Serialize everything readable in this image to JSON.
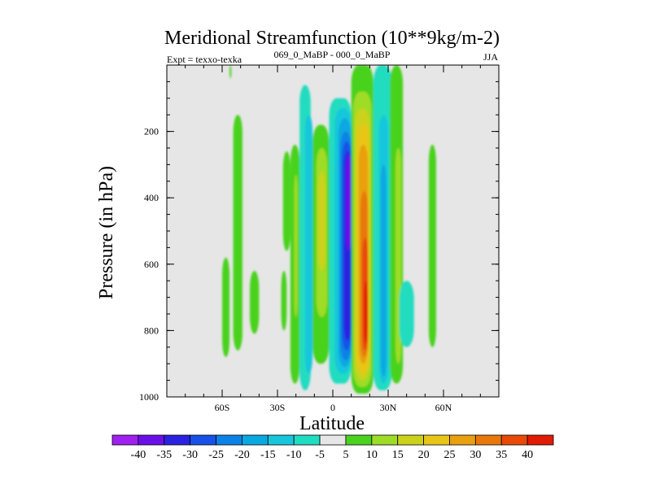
{
  "chart_data": {
    "type": "heatmap",
    "variant": "filled-contour",
    "title": "Meridional Streamfunction (10**9kg/m-2)",
    "left_label": "Expt = texxo-texka",
    "center_label": "069_0_MaBP - 000_0_MaBP",
    "right_label": "JJA",
    "xlabel": "Latitude",
    "ylabel": "Pressure (in hPa)",
    "xlim": [
      -90,
      90
    ],
    "ylim": [
      0,
      1000
    ],
    "y_inverted": true,
    "x_ticks": [
      {
        "value": -60,
        "label": "60S"
      },
      {
        "value": -30,
        "label": "30S"
      },
      {
        "value": 0,
        "label": "0"
      },
      {
        "value": 30,
        "label": "30N"
      },
      {
        "value": 60,
        "label": "60N"
      }
    ],
    "y_ticks": [
      {
        "value": 200,
        "label": "200"
      },
      {
        "value": 400,
        "label": "400"
      },
      {
        "value": 600,
        "label": "600"
      },
      {
        "value": 800,
        "label": "800"
      },
      {
        "value": 1000,
        "label": "1000"
      }
    ],
    "background_color": "#e6e6e6",
    "colorbar": {
      "levels": [
        "-40",
        "-35",
        "-30",
        "-25",
        "-20",
        "-15",
        "-10",
        "-5",
        "5",
        "10",
        "15",
        "20",
        "25",
        "30",
        "35",
        "40"
      ],
      "colors": [
        "#a020f0",
        "#6a0fe8",
        "#2a22e0",
        "#1652e8",
        "#0c82e6",
        "#0aa8e0",
        "#18c6dc",
        "#20dcc0",
        "#e6e6e6",
        "#4ad21e",
        "#9edc28",
        "#ccd21c",
        "#e8c618",
        "#e8a010",
        "#e8780c",
        "#e84a08",
        "#e01c04"
      ]
    },
    "bands": [
      {
        "lat": [
          -23,
          -18
        ],
        "p": [
          240,
          960
        ],
        "level": 1
      },
      {
        "lat": [
          -21,
          -19
        ],
        "p": [
          330,
          760
        ],
        "level": 2
      },
      {
        "lat": [
          -18,
          -12
        ],
        "p": [
          60,
          980
        ],
        "level": -1
      },
      {
        "lat": [
          -15,
          -11
        ],
        "p": [
          150,
          930
        ],
        "level": -2
      },
      {
        "lat": [
          -11,
          -2
        ],
        "p": [
          180,
          900
        ],
        "level": 1
      },
      {
        "lat": [
          -9,
          -3
        ],
        "p": [
          250,
          760
        ],
        "level": 2
      },
      {
        "lat": [
          -8,
          -4
        ],
        "p": [
          320,
          620
        ],
        "level": 3
      },
      {
        "lat": [
          -2,
          10
        ],
        "p": [
          100,
          960
        ],
        "level": -1
      },
      {
        "lat": [
          1,
          10
        ],
        "p": [
          130,
          930
        ],
        "level": -2
      },
      {
        "lat": [
          3,
          10
        ],
        "p": [
          160,
          910
        ],
        "level": -3
      },
      {
        "lat": [
          4,
          10
        ],
        "p": [
          200,
          890
        ],
        "level": -4
      },
      {
        "lat": [
          5,
          10
        ],
        "p": [
          230,
          860
        ],
        "level": -5
      },
      {
        "lat": [
          6,
          10
        ],
        "p": [
          260,
          830
        ],
        "level": -6
      },
      {
        "lat": [
          7,
          10
        ],
        "p": [
          270,
          560
        ],
        "level": -7
      },
      {
        "lat": [
          10,
          22
        ],
        "p": [
          0,
          990
        ],
        "level": 1
      },
      {
        "lat": [
          11,
          21
        ],
        "p": [
          80,
          970
        ],
        "level": 2
      },
      {
        "lat": [
          12,
          20
        ],
        "p": [
          130,
          950
        ],
        "level": 3
      },
      {
        "lat": [
          13,
          20
        ],
        "p": [
          180,
          930
        ],
        "level": 4
      },
      {
        "lat": [
          14,
          19
        ],
        "p": [
          240,
          900
        ],
        "level": 5
      },
      {
        "lat": [
          15,
          19
        ],
        "p": [
          380,
          880
        ],
        "level": 6
      },
      {
        "lat": [
          16,
          19
        ],
        "p": [
          520,
          860
        ],
        "level": 7
      },
      {
        "lat": [
          17,
          19
        ],
        "p": [
          650,
          840
        ],
        "level": 8
      },
      {
        "lat": [
          22,
          32
        ],
        "p": [
          0,
          980
        ],
        "level": -1
      },
      {
        "lat": [
          25,
          30
        ],
        "p": [
          150,
          960
        ],
        "level": -2
      },
      {
        "lat": [
          26,
          29
        ],
        "p": [
          300,
          940
        ],
        "level": -3
      },
      {
        "lat": [
          31,
          38
        ],
        "p": [
          0,
          960
        ],
        "level": 1
      },
      {
        "lat": [
          34,
          37
        ],
        "p": [
          250,
          900
        ],
        "level": 2
      },
      {
        "lat": [
          36,
          44
        ],
        "p": [
          650,
          850
        ],
        "level": -1
      },
      {
        "lat": [
          52,
          56
        ],
        "p": [
          240,
          850
        ],
        "level": 1
      },
      {
        "lat": [
          -27,
          -23
        ],
        "p": [
          260,
          560
        ],
        "level": 1
      },
      {
        "lat": [
          -28,
          -25
        ],
        "p": [
          620,
          800
        ],
        "level": 1
      },
      {
        "lat": [
          -45,
          -40
        ],
        "p": [
          620,
          810
        ],
        "level": 1
      },
      {
        "lat": [
          -54,
          -49
        ],
        "p": [
          150,
          860
        ],
        "level": 1
      },
      {
        "lat": [
          -60,
          -56
        ],
        "p": [
          580,
          880
        ],
        "level": 1
      },
      {
        "lat": [
          -56,
          -55
        ],
        "p": [
          0,
          40
        ],
        "level": 1
      }
    ]
  }
}
